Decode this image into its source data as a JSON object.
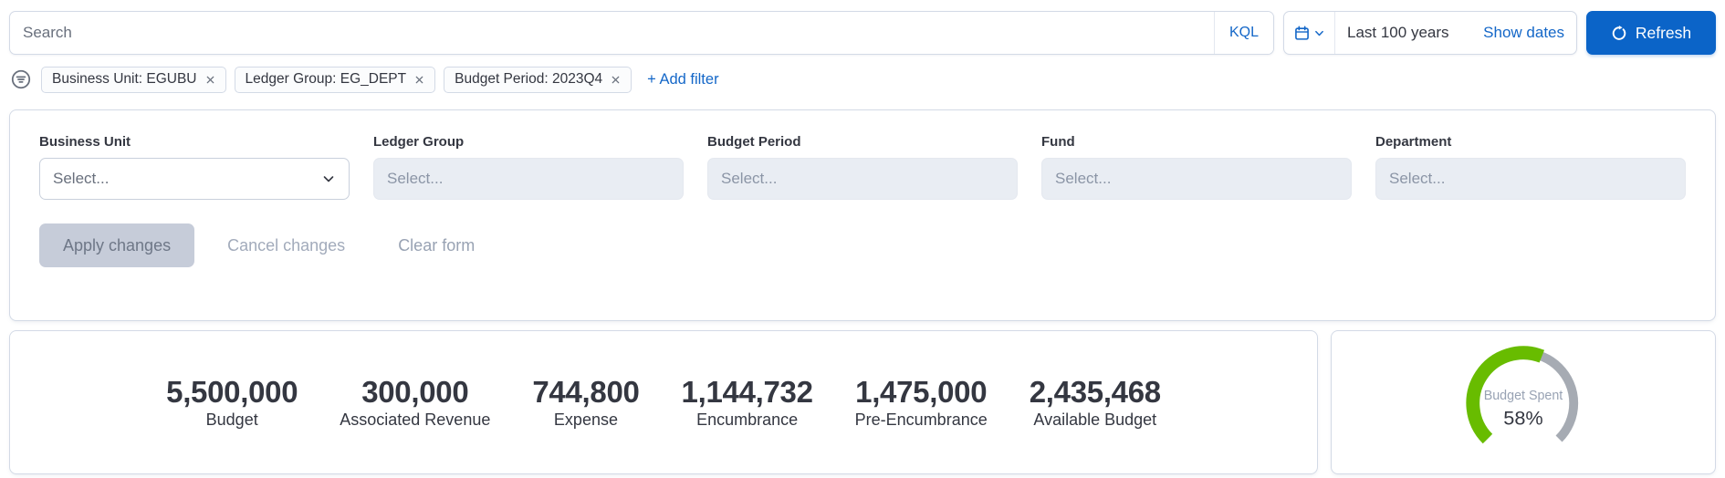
{
  "colors": {
    "primary_button": "#0b64c8",
    "link": "#1467c8",
    "border": "#d3dae6",
    "text": "#343741",
    "subdued_text": "#69707d",
    "gauge_fill": "#68bc00",
    "gauge_track": "#a6abb3"
  },
  "query_bar": {
    "search_placeholder": "Search",
    "kql_label": "KQL",
    "calendar_icon": "calendar-icon",
    "date_range": "Last 100 years",
    "show_dates_label": "Show dates",
    "refresh_label": "Refresh"
  },
  "filter_bar": {
    "menu_icon": "filter-menu-icon",
    "pills": [
      {
        "label": "Business Unit: EGUBU"
      },
      {
        "label": "Ledger Group: EG_DEPT"
      },
      {
        "label": "Budget Period: 2023Q4"
      }
    ],
    "add_filter_label": "+ Add filter"
  },
  "filter_form": {
    "fields": [
      {
        "label": "Business Unit",
        "placeholder": "Select...",
        "enabled": true
      },
      {
        "label": "Ledger Group",
        "placeholder": "Select...",
        "enabled": false
      },
      {
        "label": "Budget Period",
        "placeholder": "Select...",
        "enabled": false
      },
      {
        "label": "Fund",
        "placeholder": "Select...",
        "enabled": false
      },
      {
        "label": "Department",
        "placeholder": "Select...",
        "enabled": false
      }
    ],
    "apply_label": "Apply changes",
    "cancel_label": "Cancel changes",
    "clear_label": "Clear form"
  },
  "metrics": [
    {
      "value": "5,500,000",
      "label": "Budget"
    },
    {
      "value": "300,000",
      "label": "Associated Revenue"
    },
    {
      "value": "744,800",
      "label": "Expense"
    },
    {
      "value": "1,144,732",
      "label": "Encumbrance"
    },
    {
      "value": "1,475,000",
      "label": "Pre-Encumbrance"
    },
    {
      "value": "2,435,468",
      "label": "Available Budget"
    }
  ],
  "gauge": {
    "title": "Budget Spent",
    "percent": 58,
    "percent_label": "58%",
    "fill_color": "#68bc00",
    "track_color": "#a6abb3"
  },
  "chart_data": [
    {
      "type": "table",
      "title": "Budget summary metrics",
      "categories": [
        "Budget",
        "Associated Revenue",
        "Expense",
        "Encumbrance",
        "Pre-Encumbrance",
        "Available Budget"
      ],
      "values": [
        5500000,
        300000,
        744800,
        1144732,
        1475000,
        2435468
      ]
    },
    {
      "type": "pie",
      "subtype": "gauge",
      "title": "Budget Spent",
      "values": [
        58
      ],
      "value_label": "58%",
      "range": [
        0,
        100
      ],
      "arc_sweep_degrees": 270,
      "fill_color": "#68bc00",
      "track_color": "#a6abb3"
    }
  ]
}
